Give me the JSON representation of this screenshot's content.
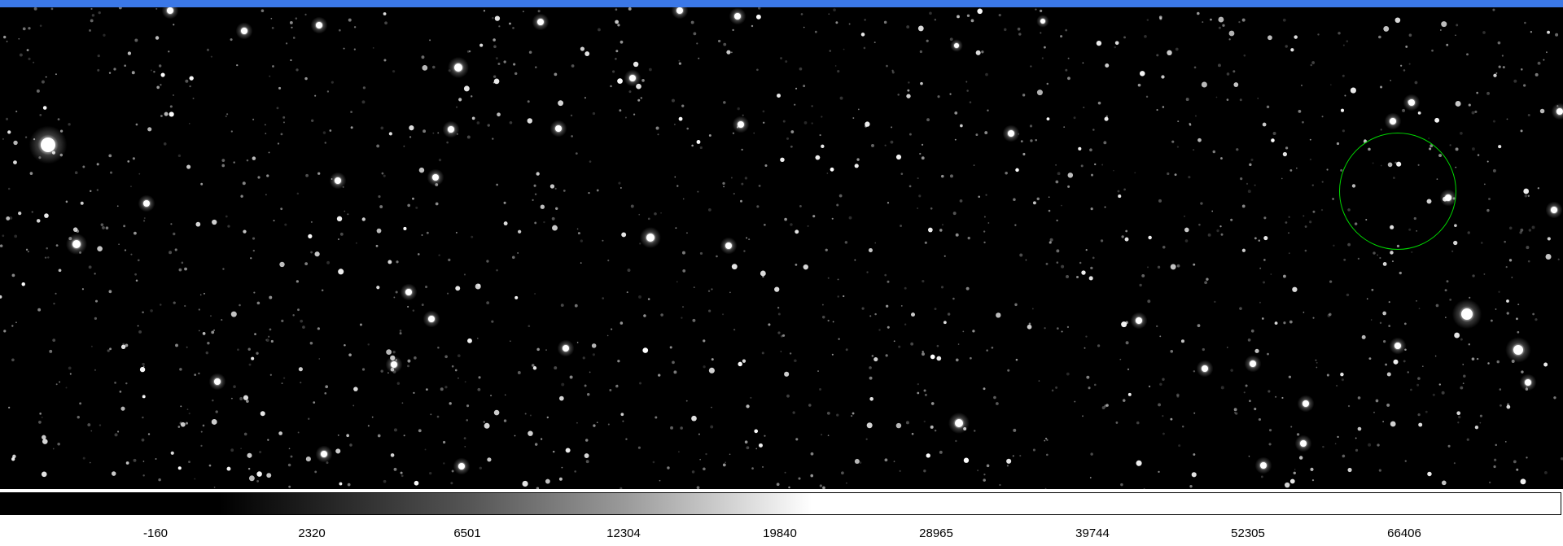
{
  "colors": {
    "window_strip": "#3b78e7",
    "background": "#000000",
    "region_outline": "#00d800"
  },
  "colorbar": {
    "scale": "grayscale",
    "tick_labels": [
      "-160",
      "2320",
      "6501",
      "12304",
      "19840",
      "28965",
      "39744",
      "52305",
      "66406"
    ]
  }
}
